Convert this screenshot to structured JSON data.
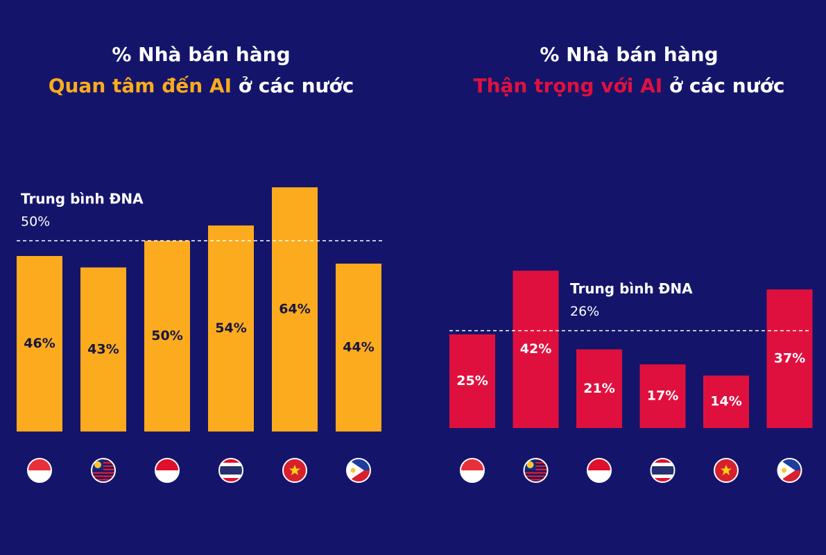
{
  "chart_data": [
    {
      "type": "bar",
      "title_line1": "% Nhà bán hàng",
      "title_highlight": "Quan tâm đến AI",
      "title_rest": " ở các nước",
      "values": [
        46,
        43,
        50,
        54,
        64,
        44
      ],
      "value_labels": [
        "46%",
        "43%",
        "50%",
        "54%",
        "64%",
        "44%"
      ],
      "color": "#fbab1d",
      "label_color": "#15153f",
      "reference": {
        "label": "Trung bình ĐNA",
        "value": 50,
        "value_label": "50%"
      }
    },
    {
      "type": "bar",
      "title_line1": "% Nhà bán hàng",
      "title_highlight": "Thận trọng với AI",
      "title_rest": " ở các nước",
      "values": [
        25,
        42,
        21,
        17,
        14,
        37
      ],
      "value_labels": [
        "25%",
        "42%",
        "21%",
        "17%",
        "14%",
        "37%"
      ],
      "color": "#e0103e",
      "label_color": "#ffffff",
      "reference": {
        "label": "Trung bình ĐNA",
        "value": 26,
        "value_label": "26%"
      }
    }
  ]
}
